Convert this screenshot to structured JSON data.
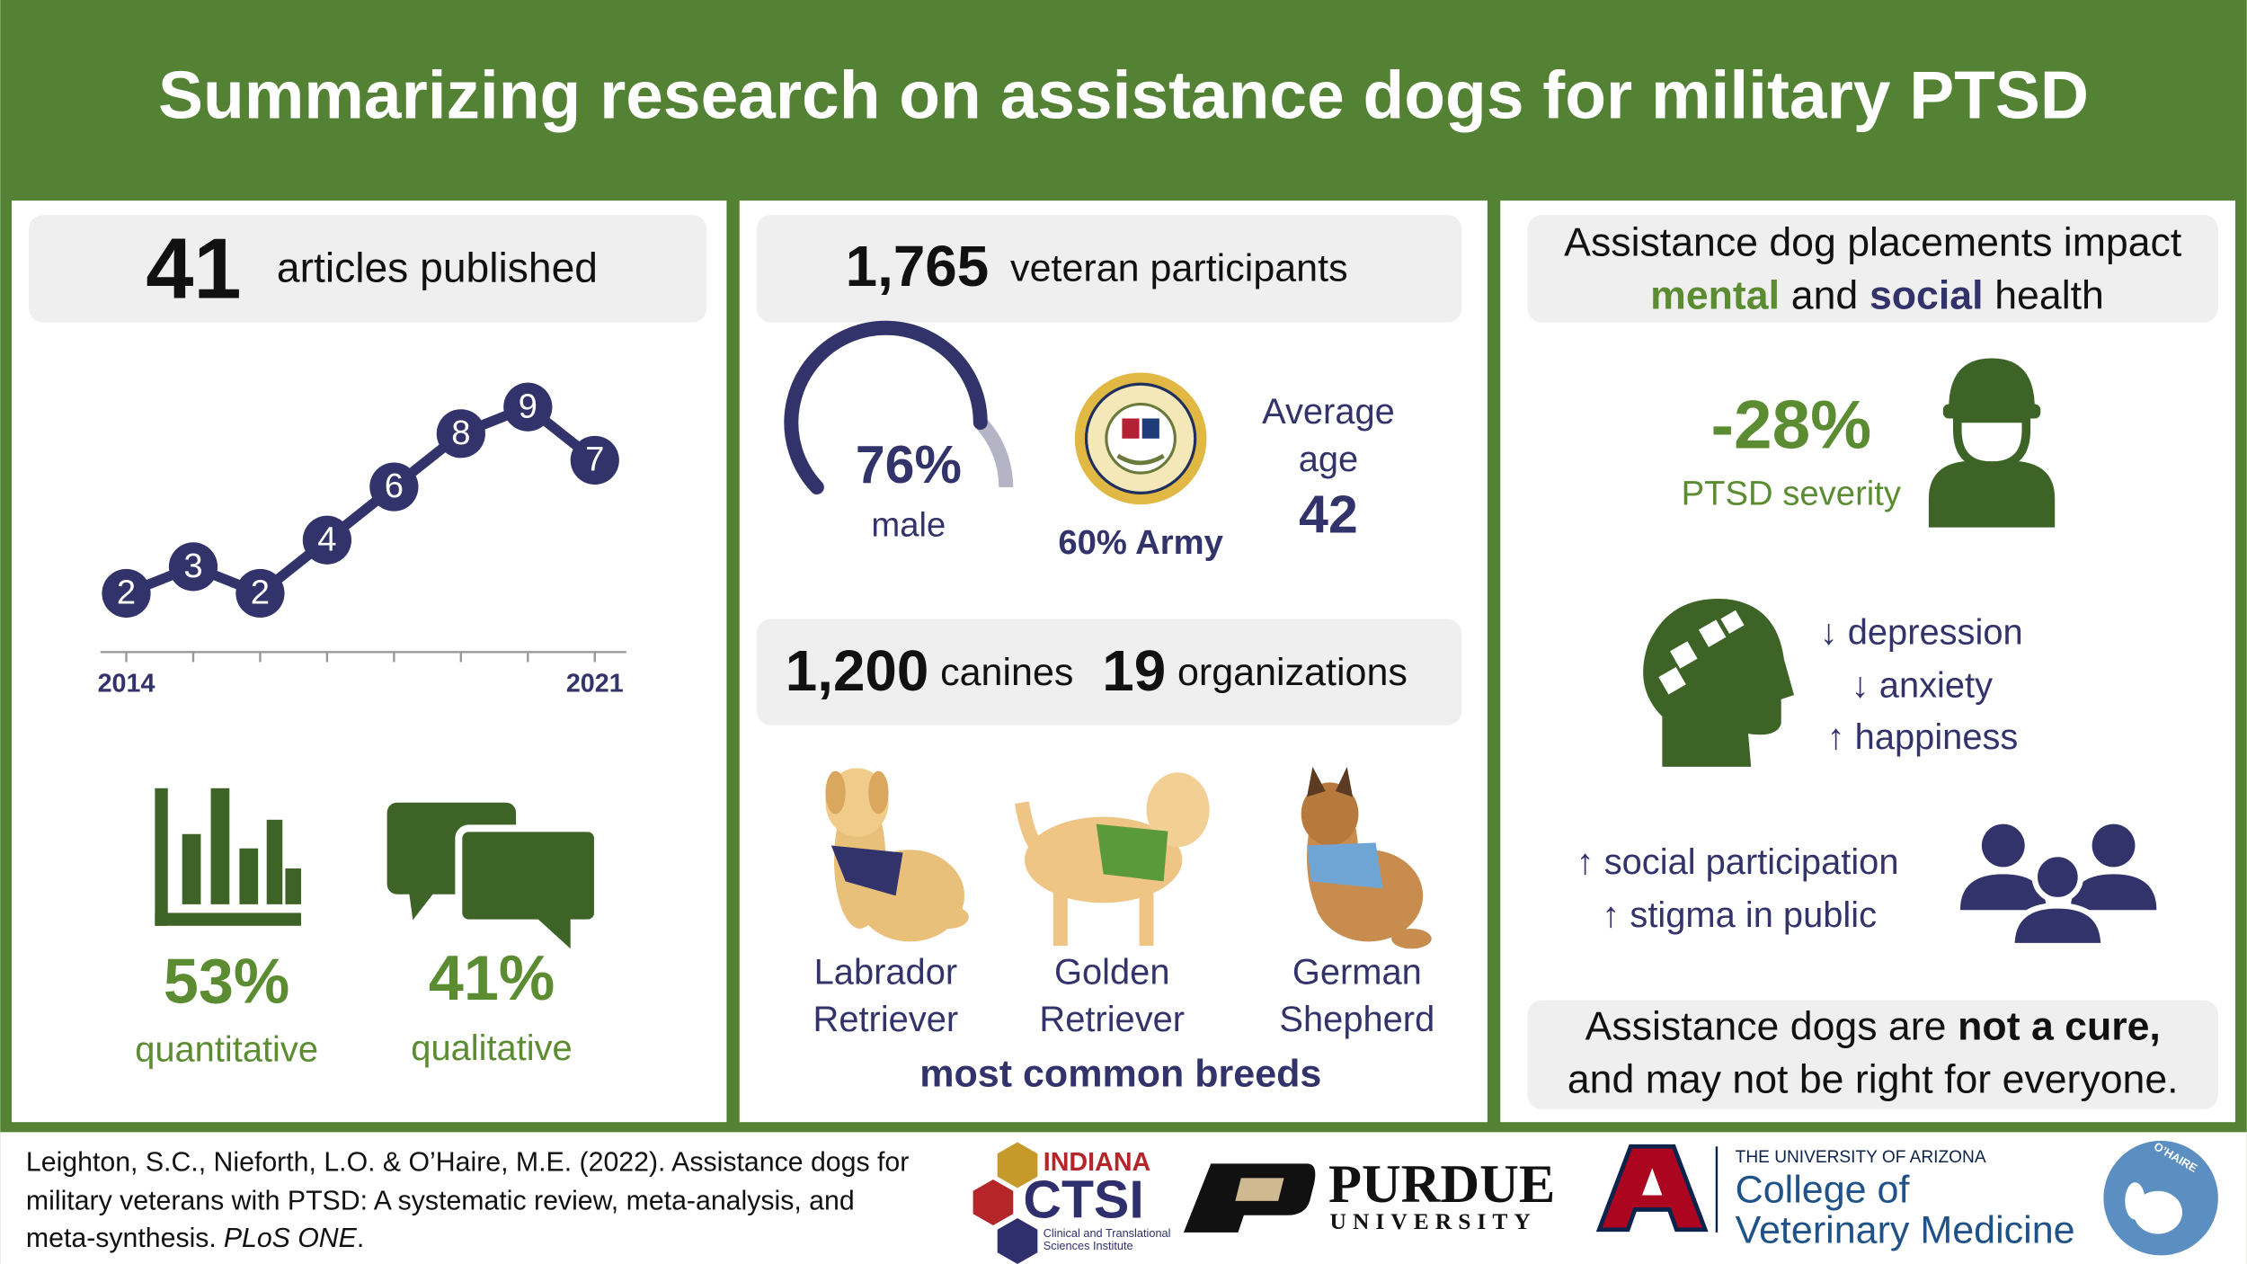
{
  "header": {
    "title": "Summarizing research on assistance dogs for military PTSD"
  },
  "articles": {
    "count": 41,
    "label": "articles published",
    "trend": {
      "x": [
        "2014",
        null,
        null,
        null,
        null,
        null,
        null,
        "2021"
      ],
      "values": [
        2,
        3,
        2,
        4,
        6,
        8,
        9,
        7
      ]
    },
    "quantitative": {
      "percent": "53%",
      "label": "quantitative"
    },
    "qualitative": {
      "percent": "41%",
      "label": "qualitative"
    }
  },
  "participants": {
    "count": "1,765",
    "label": "veteran participants",
    "male": {
      "value": 76,
      "value_label": "76%",
      "label": "male"
    },
    "army": "60% Army",
    "age_label": [
      "Average",
      "age"
    ],
    "age": 42
  },
  "dogs": {
    "canines_count": "1,200",
    "canines_label": "canines",
    "organizations_count": 19,
    "organizations_label": "organizations",
    "breeds": [
      [
        "Labrador",
        "Retriever"
      ],
      [
        "Golden",
        "Retriever"
      ],
      [
        "German",
        "Shepherd"
      ]
    ],
    "breeds_caption": "most common breeds"
  },
  "impact": {
    "heading": {
      "line1": "Assistance dog placements impact",
      "mental": "mental",
      "and": "and",
      "social": "social",
      "health": "health"
    },
    "ptsd": {
      "change": "-28%",
      "label": "PTSD severity"
    },
    "mental_outcomes": [
      "↓ depression",
      "↓ anxiety",
      "↑ happiness"
    ],
    "social_outcomes": [
      "↑ social participation",
      "↑ stigma in public"
    ],
    "caveat": {
      "lead": "Assistance dogs are",
      "emphasis": "not a cure,",
      "line2": "and may not be right for everyone."
    }
  },
  "footer": {
    "citation": [
      "Leighton, S.C., Nieforth, L.O. & O’Haire, M.E. (2022). Assistance dogs for",
      "military veterans with PTSD: A systematic review, meta-analysis, and",
      "meta-synthesis."
    ],
    "journal": "PLoS ONE",
    "end": ".",
    "logos": {
      "ctsi": {
        "state": "INDIANA",
        "name": "CTSI",
        "sub": [
          "Clinical and Translational",
          "Sciences Institute"
        ]
      },
      "purdue": {
        "name": "PURDUE",
        "sub": "UNIVERSITY"
      },
      "arizona": {
        "top": "THE UNIVERSITY OF ARIZONA",
        "lines": [
          "College of",
          "Veterinary Medicine"
        ]
      },
      "ohaire": "O’HAIRE"
    }
  }
}
